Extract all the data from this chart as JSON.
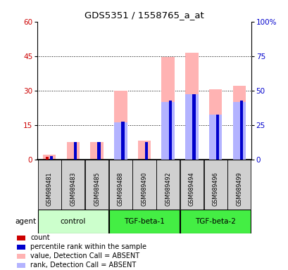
{
  "title": "GDS5351 / 1558765_a_at",
  "samples": [
    "GSM989481",
    "GSM989483",
    "GSM989485",
    "GSM989488",
    "GSM989490",
    "GSM989492",
    "GSM989494",
    "GSM989496",
    "GSM989499"
  ],
  "group_defs": [
    {
      "label": "control",
      "start": 0,
      "end": 2,
      "color": "#ccffcc"
    },
    {
      "label": "TGF-beta-1",
      "start": 3,
      "end": 5,
      "color": "#44ee44"
    },
    {
      "label": "TGF-beta-2",
      "start": 6,
      "end": 8,
      "color": "#44ee44"
    }
  ],
  "absent_bar_values": [
    2.0,
    7.5,
    7.5,
    30.0,
    8.0,
    44.5,
    46.5,
    30.5,
    32.0
  ],
  "absent_rank_values": [
    0.0,
    0.0,
    0.0,
    16.0,
    0.0,
    25.0,
    28.5,
    19.5,
    25.0
  ],
  "count_values": [
    1.0,
    0.0,
    0.0,
    0.0,
    0.0,
    0.0,
    0.0,
    0.0,
    0.0
  ],
  "rank_values": [
    1.5,
    7.5,
    7.5,
    16.5,
    7.5,
    25.5,
    28.5,
    19.5,
    25.5
  ],
  "ylim_left": [
    0,
    60
  ],
  "ylim_right": [
    0,
    100
  ],
  "yticks_left": [
    0,
    15,
    30,
    45,
    60
  ],
  "yticks_right": [
    0,
    25,
    50,
    75,
    100
  ],
  "ytick_labels_right": [
    "0",
    "25",
    "50",
    "75",
    "100%"
  ],
  "color_count": "#cc0000",
  "color_rank": "#0000cc",
  "color_absent_bar": "#ffb3b3",
  "color_absent_rank": "#b3b3ff",
  "sample_box_color": "#d0d0d0",
  "bg_color": "#ffffff",
  "legend_labels": [
    "count",
    "percentile rank within the sample",
    "value, Detection Call = ABSENT",
    "rank, Detection Call = ABSENT"
  ],
  "legend_colors": [
    "#cc0000",
    "#0000cc",
    "#ffb3b3",
    "#b3b3ff"
  ]
}
